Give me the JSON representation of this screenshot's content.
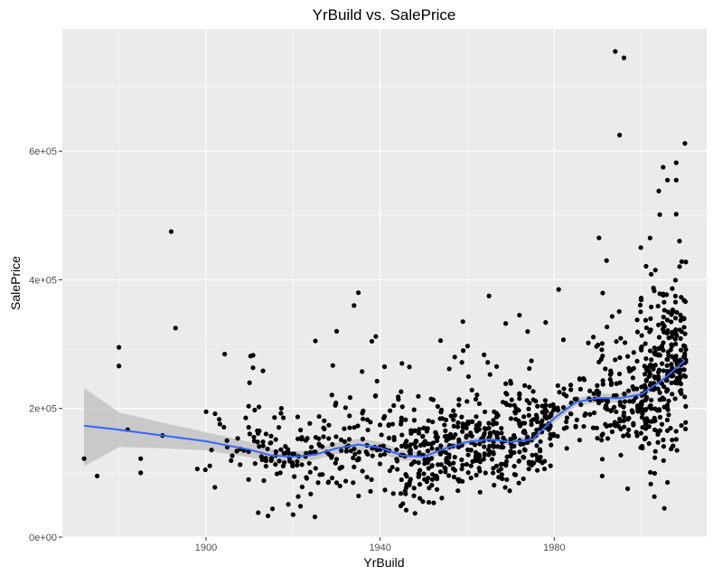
{
  "chart_data": {
    "type": "scatter",
    "title": "YrBuild vs. SalePrice",
    "xlabel": "YrBuild",
    "ylabel": "SalePrice",
    "xlim": [
      1867,
      2015
    ],
    "ylim": [
      0,
      790000
    ],
    "x_ticks": [
      1900,
      1940,
      1980
    ],
    "x_tick_labels": [
      "1900",
      "1940",
      "1980"
    ],
    "x_minor_ticks": [
      1880,
      1920,
      1960,
      2000
    ],
    "y_ticks": [
      0,
      200000,
      400000,
      600000
    ],
    "y_tick_labels": [
      "0e+00",
      "2e+05",
      "4e+05",
      "6e+05"
    ],
    "y_minor_ticks": [
      100000,
      300000,
      500000,
      700000
    ],
    "grid": true,
    "background": "#ebebeb",
    "point_color": "#000000",
    "smooth_color": "#3366ff",
    "band_color": "#bdbdbd",
    "smooth": {
      "x": [
        1872,
        1880,
        1890,
        1900,
        1910,
        1915,
        1920,
        1925,
        1930,
        1935,
        1940,
        1945,
        1950,
        1955,
        1960,
        1965,
        1970,
        1975,
        1980,
        1985,
        1990,
        1995,
        2000,
        2005,
        2010
      ],
      "y": [
        173000,
        167000,
        158000,
        149000,
        136000,
        127000,
        125000,
        128000,
        138000,
        144000,
        139000,
        127000,
        125000,
        138000,
        148000,
        152000,
        148000,
        152000,
        185000,
        210000,
        216000,
        216000,
        222000,
        245000,
        275000
      ],
      "lo": [
        110000,
        140000,
        138000,
        135000,
        124000,
        117000,
        117000,
        120000,
        129000,
        135000,
        130000,
        119000,
        118000,
        132000,
        143000,
        147000,
        142000,
        146000,
        178000,
        204000,
        209000,
        209000,
        215000,
        238000,
        262000
      ],
      "hi": [
        232000,
        194000,
        178000,
        163000,
        148000,
        137000,
        133000,
        136000,
        147000,
        153000,
        148000,
        135000,
        132000,
        144000,
        153000,
        157000,
        154000,
        158000,
        192000,
        216000,
        223000,
        223000,
        229000,
        252000,
        288000
      ]
    },
    "outliers": [
      {
        "x": 1872,
        "y": 122000
      },
      {
        "x": 1875,
        "y": 95000
      },
      {
        "x": 1880,
        "y": 295000
      },
      {
        "x": 1880,
        "y": 266000
      },
      {
        "x": 1882,
        "y": 167000
      },
      {
        "x": 1885,
        "y": 100000
      },
      {
        "x": 1885,
        "y": 122000
      },
      {
        "x": 1890,
        "y": 158000
      },
      {
        "x": 1892,
        "y": 475000
      },
      {
        "x": 1893,
        "y": 325000
      },
      {
        "x": 1898,
        "y": 106000
      },
      {
        "x": 1910,
        "y": 240000
      },
      {
        "x": 1912,
        "y": 38000
      },
      {
        "x": 1920,
        "y": 35000
      },
      {
        "x": 1930,
        "y": 320000
      },
      {
        "x": 1934,
        "y": 360000
      },
      {
        "x": 1935,
        "y": 380000
      },
      {
        "x": 1939,
        "y": 312000
      },
      {
        "x": 1941,
        "y": 265000
      },
      {
        "x": 1945,
        "y": 270000
      },
      {
        "x": 1948,
        "y": 37000
      },
      {
        "x": 1959,
        "y": 335000
      },
      {
        "x": 1965,
        "y": 375000
      },
      {
        "x": 1972,
        "y": 345000
      },
      {
        "x": 1981,
        "y": 385000
      },
      {
        "x": 1992,
        "y": 430000
      },
      {
        "x": 1991,
        "y": 95000
      },
      {
        "x": 1994,
        "y": 755000
      },
      {
        "x": 1995,
        "y": 625000
      },
      {
        "x": 1996,
        "y": 745000
      },
      {
        "x": 2002,
        "y": 465000
      },
      {
        "x": 2004,
        "y": 538000
      },
      {
        "x": 2005,
        "y": 575000
      },
      {
        "x": 2006,
        "y": 555000
      },
      {
        "x": 2008,
        "y": 582000
      },
      {
        "x": 2008,
        "y": 555000
      },
      {
        "x": 2008,
        "y": 502000
      },
      {
        "x": 2010,
        "y": 612000
      },
      {
        "x": 2006,
        "y": 85000
      },
      {
        "x": 2003,
        "y": 185000
      }
    ]
  }
}
